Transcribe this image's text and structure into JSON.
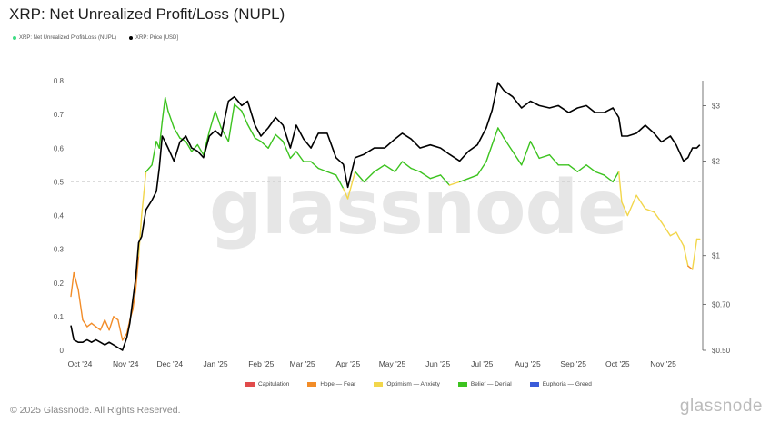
{
  "title": "XRP: Net Unrealized Profit/Loss (NUPL)",
  "legend_top": [
    {
      "label": "XRP: Net Unrealized Profit/Loss (NUPL)",
      "color": "#3ddc84"
    },
    {
      "label": "XRP: Price [USD]",
      "color": "#000000"
    }
  ],
  "legend_bottom": [
    {
      "label": "Capitulation",
      "color": "#e14b4b"
    },
    {
      "label": "Hope — Fear",
      "color": "#f28c28"
    },
    {
      "label": "Optimism — Anxiety",
      "color": "#f2d64b"
    },
    {
      "label": "Belief — Denial",
      "color": "#3cc31f"
    },
    {
      "label": "Euphoria — Greed",
      "color": "#3a5bd9"
    }
  ],
  "footer": "© 2025 Glassnode. All Rights Reserved.",
  "brand": "glassnode",
  "watermark": "glassnode",
  "chart_data": {
    "type": "line",
    "x_tick_labels": [
      "Oct '24",
      "Nov '24",
      "Dec '24",
      "Jan '25",
      "Feb '25",
      "Mar '25",
      "Apr '25",
      "May '25",
      "Jun '25",
      "Jul '25",
      "Aug '25",
      "Sep '25",
      "Oct '25",
      "Nov '25"
    ],
    "y_left": {
      "ticks": [
        "0",
        "0.1",
        "0.2",
        "0.3",
        "0.4",
        "0.5",
        "0.6",
        "0.7",
        "0.8"
      ],
      "range": [
        0,
        0.8
      ]
    },
    "y_right": {
      "scale": "log",
      "ticks": [
        "$0.50",
        "$0.70",
        "$1",
        "$2",
        "$3"
      ],
      "tick_values": [
        0.5,
        0.7,
        1,
        2,
        3
      ],
      "range": [
        0.5,
        3.6
      ]
    },
    "zones": [
      {
        "name": "Capitulation",
        "min": -1,
        "max": 0,
        "color": "#e14b4b"
      },
      {
        "name": "Hope — Fear",
        "min": 0,
        "max": 0.25,
        "color": "#f28c28"
      },
      {
        "name": "Optimism — Anxiety",
        "min": 0.25,
        "max": 0.5,
        "color": "#f2d64b"
      },
      {
        "name": "Belief — Denial",
        "min": 0.5,
        "max": 0.75,
        "color": "#3cc31f"
      },
      {
        "name": "Euphoria — Greed",
        "min": 0.75,
        "max": 1,
        "color": "#3a5bd9"
      }
    ],
    "series": [
      {
        "name": "XRP: Net Unrealized Profit/Loss (NUPL)",
        "axis": "left",
        "x": [
          "2024-10-01",
          "2024-10-03",
          "2024-10-06",
          "2024-10-09",
          "2024-10-12",
          "2024-10-15",
          "2024-10-18",
          "2024-10-21",
          "2024-10-24",
          "2024-10-27",
          "2024-10-30",
          "2024-11-02",
          "2024-11-05",
          "2024-11-08",
          "2024-11-10",
          "2024-11-12",
          "2024-11-14",
          "2024-11-16",
          "2024-11-18",
          "2024-11-21",
          "2024-11-23",
          "2024-11-25",
          "2024-11-28",
          "2024-11-30",
          "2024-12-02",
          "2024-12-04",
          "2024-12-06",
          "2024-12-10",
          "2024-12-14",
          "2024-12-18",
          "2024-12-22",
          "2024-12-26",
          "2024-12-30",
          "2025-01-03",
          "2025-01-07",
          "2025-01-11",
          "2025-01-16",
          "2025-01-20",
          "2025-01-25",
          "2025-01-29",
          "2025-02-03",
          "2025-02-07",
          "2025-02-12",
          "2025-02-17",
          "2025-02-22",
          "2025-02-27",
          "2025-03-03",
          "2025-03-08",
          "2025-03-13",
          "2025-03-18",
          "2025-03-24",
          "2025-03-30",
          "2025-04-04",
          "2025-04-07",
          "2025-04-12",
          "2025-04-18",
          "2025-04-25",
          "2025-05-02",
          "2025-05-09",
          "2025-05-14",
          "2025-05-20",
          "2025-05-26",
          "2025-06-02",
          "2025-06-09",
          "2025-06-15",
          "2025-06-22",
          "2025-06-28",
          "2025-07-04",
          "2025-07-10",
          "2025-07-14",
          "2025-07-18",
          "2025-07-22",
          "2025-07-28",
          "2025-08-03",
          "2025-08-09",
          "2025-08-15",
          "2025-08-22",
          "2025-08-28",
          "2025-09-04",
          "2025-09-10",
          "2025-09-16",
          "2025-09-22",
          "2025-09-28",
          "2025-10-04",
          "2025-10-08",
          "2025-10-10",
          "2025-10-14",
          "2025-10-20",
          "2025-10-26",
          "2025-11-01",
          "2025-11-06",
          "2025-11-12",
          "2025-11-16",
          "2025-11-21",
          "2025-11-24",
          "2025-11-27",
          "2025-11-30",
          "2025-12-02"
        ],
        "values": [
          0.16,
          0.23,
          0.18,
          0.09,
          0.07,
          0.08,
          0.07,
          0.06,
          0.09,
          0.06,
          0.1,
          0.09,
          0.03,
          0.05,
          0.09,
          0.12,
          0.18,
          0.28,
          0.4,
          0.53,
          0.54,
          0.55,
          0.62,
          0.6,
          0.68,
          0.75,
          0.71,
          0.66,
          0.63,
          0.62,
          0.59,
          0.61,
          0.58,
          0.65,
          0.71,
          0.66,
          0.62,
          0.73,
          0.71,
          0.67,
          0.63,
          0.62,
          0.6,
          0.64,
          0.62,
          0.57,
          0.59,
          0.56,
          0.56,
          0.54,
          0.53,
          0.52,
          0.48,
          0.45,
          0.53,
          0.5,
          0.53,
          0.55,
          0.53,
          0.56,
          0.54,
          0.53,
          0.51,
          0.52,
          0.49,
          0.5,
          0.51,
          0.52,
          0.56,
          0.61,
          0.66,
          0.63,
          0.59,
          0.55,
          0.62,
          0.57,
          0.58,
          0.55,
          0.55,
          0.53,
          0.55,
          0.53,
          0.52,
          0.5,
          0.53,
          0.44,
          0.4,
          0.46,
          0.42,
          0.41,
          0.38,
          0.34,
          0.35,
          0.31,
          0.25,
          0.24,
          0.33,
          0.33
        ]
      },
      {
        "name": "XRP: Price [USD]",
        "axis": "right",
        "color": "#000000",
        "x": [
          "2024-10-01",
          "2024-10-03",
          "2024-10-06",
          "2024-10-09",
          "2024-10-12",
          "2024-10-15",
          "2024-10-18",
          "2024-10-21",
          "2024-10-24",
          "2024-10-27",
          "2024-10-30",
          "2024-11-02",
          "2024-11-05",
          "2024-11-08",
          "2024-11-10",
          "2024-11-12",
          "2024-11-14",
          "2024-11-16",
          "2024-11-18",
          "2024-11-21",
          "2024-11-23",
          "2024-11-25",
          "2024-11-28",
          "2024-11-30",
          "2024-12-02",
          "2024-12-04",
          "2024-12-06",
          "2024-12-10",
          "2024-12-14",
          "2024-12-18",
          "2024-12-22",
          "2024-12-26",
          "2024-12-30",
          "2025-01-03",
          "2025-01-07",
          "2025-01-11",
          "2025-01-16",
          "2025-01-20",
          "2025-01-25",
          "2025-01-29",
          "2025-02-03",
          "2025-02-07",
          "2025-02-12",
          "2025-02-17",
          "2025-02-22",
          "2025-02-27",
          "2025-03-03",
          "2025-03-08",
          "2025-03-13",
          "2025-03-18",
          "2025-03-24",
          "2025-03-30",
          "2025-04-04",
          "2025-04-07",
          "2025-04-12",
          "2025-04-18",
          "2025-04-25",
          "2025-05-02",
          "2025-05-09",
          "2025-05-14",
          "2025-05-20",
          "2025-05-26",
          "2025-06-02",
          "2025-06-09",
          "2025-06-15",
          "2025-06-22",
          "2025-06-28",
          "2025-07-04",
          "2025-07-10",
          "2025-07-14",
          "2025-07-18",
          "2025-07-22",
          "2025-07-28",
          "2025-08-03",
          "2025-08-09",
          "2025-08-15",
          "2025-08-22",
          "2025-08-28",
          "2025-09-04",
          "2025-09-10",
          "2025-09-16",
          "2025-09-22",
          "2025-09-28",
          "2025-10-04",
          "2025-10-08",
          "2025-10-10",
          "2025-10-14",
          "2025-10-20",
          "2025-10-26",
          "2025-11-01",
          "2025-11-06",
          "2025-11-12",
          "2025-11-16",
          "2025-11-21",
          "2025-11-24",
          "2025-11-27",
          "2025-11-30",
          "2025-12-02"
        ],
        "values": [
          0.6,
          0.54,
          0.53,
          0.53,
          0.54,
          0.53,
          0.54,
          0.53,
          0.52,
          0.53,
          0.52,
          0.51,
          0.5,
          0.55,
          0.61,
          0.72,
          0.85,
          1.1,
          1.15,
          1.4,
          1.45,
          1.5,
          1.6,
          1.9,
          2.4,
          2.3,
          2.2,
          2.0,
          2.3,
          2.4,
          2.2,
          2.15,
          2.05,
          2.4,
          2.5,
          2.4,
          3.1,
          3.2,
          3.0,
          3.1,
          2.6,
          2.4,
          2.55,
          2.75,
          2.6,
          2.2,
          2.6,
          2.35,
          2.2,
          2.45,
          2.45,
          2.05,
          1.95,
          1.65,
          2.05,
          2.1,
          2.2,
          2.2,
          2.35,
          2.45,
          2.35,
          2.2,
          2.25,
          2.2,
          2.1,
          2.0,
          2.15,
          2.25,
          2.55,
          2.9,
          3.55,
          3.35,
          3.2,
          2.95,
          3.1,
          3.0,
          2.95,
          3.0,
          2.85,
          2.95,
          3.0,
          2.85,
          2.85,
          2.95,
          2.75,
          2.4,
          2.4,
          2.45,
          2.6,
          2.45,
          2.3,
          2.4,
          2.25,
          2.0,
          2.05,
          2.2,
          2.2,
          2.25
        ]
      }
    ]
  }
}
